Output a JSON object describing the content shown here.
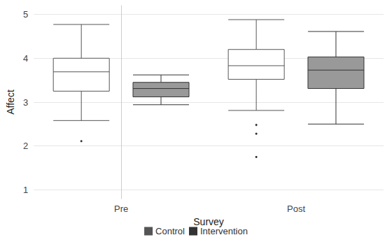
{
  "chart_data": {
    "type": "boxplot",
    "x_label": "Survey",
    "y_label": "Affect",
    "categories": [
      "Pre",
      "Post"
    ],
    "series": [
      {
        "name": "Control",
        "color": "#ffffff",
        "values": [
          [
            2.58,
            3.25,
            3.69,
            4.0,
            4.77
          ],
          [
            2.81,
            3.52,
            3.83,
            4.2,
            4.88
          ]
        ],
        "outliers": [
          [
            2.11
          ],
          [
            2.48,
            2.28,
            1.75
          ]
        ]
      },
      {
        "name": "Intervention",
        "color": "#999999",
        "values": [
          [
            2.94,
            3.12,
            3.31,
            3.45,
            3.62
          ],
          [
            2.5,
            3.31,
            3.73,
            4.03,
            4.61
          ]
        ],
        "outliers": [
          [],
          []
        ]
      }
    ],
    "ylim": [
      0.8,
      5.2
    ],
    "yticks": [
      1,
      2,
      3,
      4,
      5
    ],
    "grid": true,
    "legend": "bottom"
  }
}
